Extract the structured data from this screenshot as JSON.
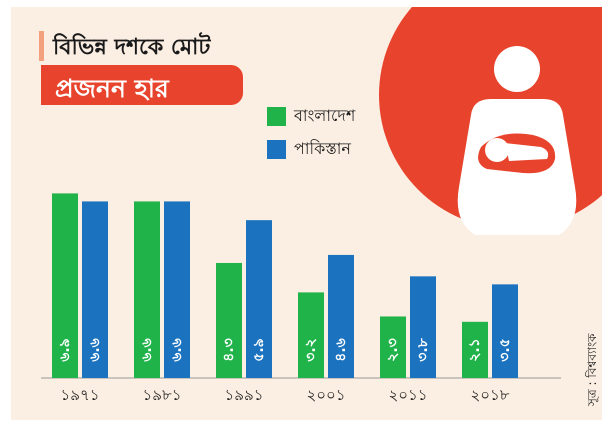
{
  "title": {
    "line1": "বিভিন্ন দশকে মোট",
    "line2": "প্রজনন হার"
  },
  "source": "সূত্র : বিশ্বব্যাংক",
  "colors": {
    "bangladesh": "#20b34a",
    "pakistan": "#1b72bf",
    "accent": "#e8432c",
    "card_background": "#fbeee2"
  },
  "icon": "mother-holding-baby-icon",
  "chart_data": {
    "type": "bar",
    "categories": [
      "১৯৭১",
      "১৯৮১",
      "১৯৯১",
      "২০০১",
      "২০১১",
      "২০১৮"
    ],
    "series": [
      {
        "name": "বাংলাদেশ",
        "values": [
          6.9,
          6.6,
          4.3,
          3.2,
          2.3,
          2.1
        ],
        "labels": [
          "৬.৯",
          "৬.৬",
          "৪.৩",
          "৩.২",
          "২.৩",
          "২.১"
        ]
      },
      {
        "name": "পাকিস্তান",
        "values": [
          6.6,
          6.6,
          5.9,
          4.6,
          3.8,
          3.5
        ],
        "labels": [
          "৬.৬",
          "৬.৬",
          "৫.৯",
          "৪.৬",
          "৩.৮",
          "৩.৫"
        ]
      }
    ],
    "ylim": [
      0,
      7.7
    ],
    "legend_position": "top-center",
    "grid": false
  }
}
